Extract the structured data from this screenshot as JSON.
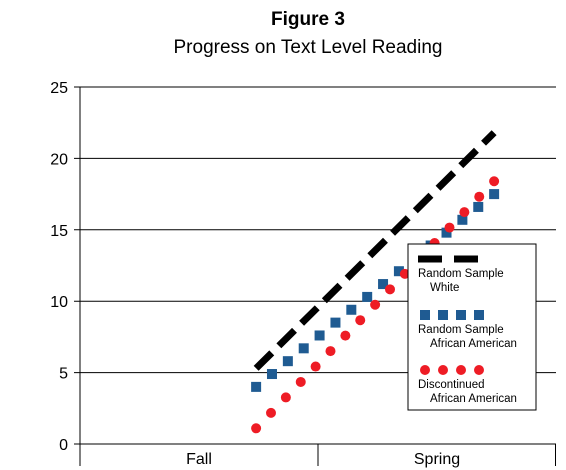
{
  "chart_data": {
    "type": "line",
    "title": "Figure 3",
    "subtitle": "Progress on Text Level Reading",
    "xlabel": "",
    "ylabel": "",
    "categories": [
      "Fall",
      "Spring"
    ],
    "x": [
      0.37,
      0.87
    ],
    "ylim": [
      0,
      25
    ],
    "yticks": [
      0,
      5,
      10,
      15,
      20,
      25
    ],
    "grid": true,
    "legend_position": "right",
    "series": [
      {
        "name_line1": "Random Sample",
        "name_line2": "White",
        "style": "dash",
        "color": "#000000",
        "values": [
          5.3,
          21.8
        ]
      },
      {
        "name_line1": "Random Sample",
        "name_line2": "African American",
        "style": "square",
        "color": "#1f5b92",
        "values": [
          4.0,
          17.5
        ]
      },
      {
        "name_line1": "Discontinued",
        "name_line2": "African American",
        "style": "circle",
        "color": "#ee1c25",
        "values": [
          1.1,
          18.4
        ]
      }
    ]
  }
}
